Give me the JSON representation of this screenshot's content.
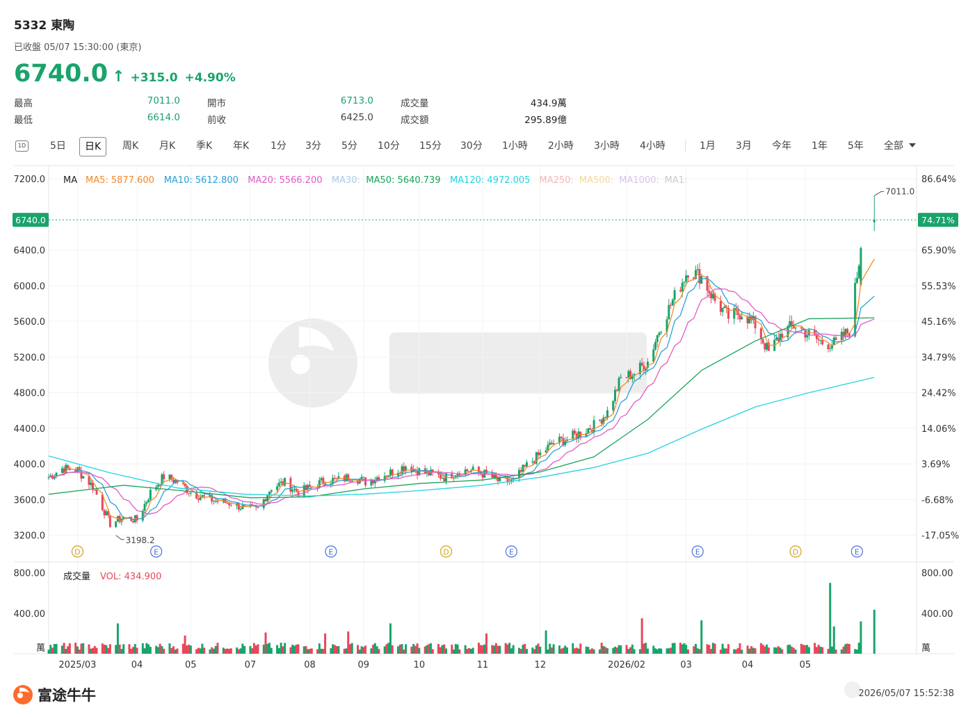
{
  "header": {
    "title": "5332  東陶",
    "status": "已收盤 05/07 15:30:00 (東京)",
    "price": "6740.0",
    "change": "+315.0",
    "change_pct": "+4.90%",
    "up_color": "#1aa36b",
    "down_color": "#e8475b"
  },
  "stats": [
    {
      "label": "最高",
      "value": "7011.0"
    },
    {
      "label": "最低",
      "value": "6614.0"
    },
    {
      "label": "開市",
      "value": "6713.0"
    },
    {
      "label": "前收",
      "value": "6425.0"
    },
    {
      "label": "成交量",
      "value": "434.9萬"
    },
    {
      "label": "成交額",
      "value": "295.89億"
    }
  ],
  "tabs": {
    "icon_label": "1D",
    "periods": [
      "5日",
      "日K",
      "周K",
      "月K",
      "季K",
      "年K",
      "1分",
      "3分",
      "5分",
      "10分",
      "15分",
      "30分",
      "1小時",
      "2小時",
      "3小時",
      "4小時"
    ],
    "ranges": [
      "1月",
      "3月",
      "今年",
      "1年",
      "5年",
      "全部"
    ],
    "active": "日K"
  },
  "legend": {
    "label": "MA",
    "items": [
      {
        "text": "MA5: 5877.600",
        "color": "#f0892b"
      },
      {
        "text": "MA10: 5612.800",
        "color": "#2a9fd8"
      },
      {
        "text": "MA20: 5566.200",
        "color": "#e05bc5"
      },
      {
        "text": "MA30:",
        "color": "#a9cbe8"
      },
      {
        "text": "MA50: 5640.739",
        "color": "#18a35c"
      },
      {
        "text": "MA120: 4972.005",
        "color": "#22d3e0"
      },
      {
        "text": "MA250:",
        "color": "#f5b7b7"
      },
      {
        "text": "MA500:",
        "color": "#f7d79a"
      },
      {
        "text": "MA1000:",
        "color": "#d4c4ef"
      },
      {
        "text": "MA1:",
        "color": "#cccccc"
      }
    ]
  },
  "volume_legend": {
    "label": "成交量",
    "value": "VOL: 434.900",
    "color": "#e8475b"
  },
  "current_price_tag": "6740.0",
  "current_pct_tag": "74.71%",
  "high_annotation": "7011.0",
  "low_annotation": "3198.2",
  "volume_unit": "萬",
  "event_markers": [
    {
      "x": "2025-03-18",
      "type": "D",
      "color": "#d4a017"
    },
    {
      "x": "2025-04-28",
      "type": "E",
      "color": "#4b6fd6"
    },
    {
      "x": "2025-07-28",
      "type": "E",
      "color": "#4b6fd6"
    },
    {
      "x": "2025-09-26",
      "type": "D",
      "color": "#d4a017"
    },
    {
      "x": "2025-10-30",
      "type": "E",
      "color": "#4b6fd6"
    },
    {
      "x": "2026-02-04",
      "type": "E",
      "color": "#4b6fd6"
    },
    {
      "x": "2026-03-27",
      "type": "D",
      "color": "#d4a017"
    },
    {
      "x": "2026-04-28",
      "type": "E",
      "color": "#4b6fd6"
    }
  ],
  "chart_data": {
    "type": "candlestick",
    "title": "",
    "x_range": [
      "2025-03-03",
      "2026-05-29"
    ],
    "ylim": [
      2900,
      7350
    ],
    "y_ticks": [
      3200,
      3600,
      4000,
      4400,
      4800,
      5200,
      5600,
      6000,
      6400,
      7200
    ],
    "y_tick_labels": [
      "3200.0",
      "3600.0",
      "4000.0",
      "4400.0",
      "4800.0",
      "5200.0",
      "5600.0",
      "6000.0",
      "6400.0",
      "7200.0"
    ],
    "pct_ticks": [
      "86.64%",
      "65.90%",
      "55.53%",
      "45.16%",
      "34.79%",
      "24.42%",
      "14.06%",
      "3.69%",
      "-6.68%",
      "-17.05%"
    ],
    "pct_tick_values": [
      7200,
      6400,
      6000,
      5600,
      5200,
      4800,
      4400,
      4000,
      3600,
      3200
    ],
    "x_tick_labels": [
      "2025/03",
      "04",
      "05",
      "07",
      "08",
      "09",
      "10",
      "11",
      "12",
      "2026/02",
      "03",
      "04",
      "05"
    ],
    "x_tick_dates": [
      "2025-03-18",
      "2025-04-18",
      "2025-05-16",
      "2025-06-16",
      "2025-07-17",
      "2025-08-14",
      "2025-09-12",
      "2025-10-15",
      "2025-11-14",
      "2025-12-29",
      "2026-01-29",
      "2026-03-02",
      "2026-04-01"
    ],
    "close_path": [
      [
        "2025-03-03",
        3850
      ],
      [
        "2025-03-10",
        3950
      ],
      [
        "2025-03-18",
        3930
      ],
      [
        "2025-03-26",
        3750
      ],
      [
        "2025-04-04",
        3330
      ],
      [
        "2025-04-11",
        3400
      ],
      [
        "2025-04-18",
        3370
      ],
      [
        "2025-04-25",
        3680
      ],
      [
        "2025-05-02",
        3860
      ],
      [
        "2025-05-09",
        3800
      ],
      [
        "2025-05-16",
        3680
      ],
      [
        "2025-05-23",
        3620
      ],
      [
        "2025-05-30",
        3580
      ],
      [
        "2025-06-06",
        3560
      ],
      [
        "2025-06-13",
        3500
      ],
      [
        "2025-06-20",
        3490
      ],
      [
        "2025-06-27",
        3740
      ],
      [
        "2025-07-04",
        3790
      ],
      [
        "2025-07-11",
        3680
      ],
      [
        "2025-07-18",
        3740
      ],
      [
        "2025-07-25",
        3820
      ],
      [
        "2025-08-01",
        3820
      ],
      [
        "2025-08-08",
        3860
      ],
      [
        "2025-08-15",
        3800
      ],
      [
        "2025-08-22",
        3860
      ],
      [
        "2025-08-29",
        3910
      ],
      [
        "2025-09-05",
        3980
      ],
      [
        "2025-09-12",
        3920
      ],
      [
        "2025-09-19",
        3880
      ],
      [
        "2025-09-26",
        3850
      ],
      [
        "2025-10-03",
        3930
      ],
      [
        "2025-10-10",
        3920
      ],
      [
        "2025-10-17",
        3880
      ],
      [
        "2025-10-24",
        3800
      ],
      [
        "2025-10-31",
        3810
      ],
      [
        "2025-11-07",
        3980
      ],
      [
        "2025-11-14",
        4110
      ],
      [
        "2025-11-21",
        4240
      ],
      [
        "2025-11-28",
        4280
      ],
      [
        "2025-12-05",
        4350
      ],
      [
        "2025-12-12",
        4430
      ],
      [
        "2025-12-19",
        4580
      ],
      [
        "2025-12-26",
        4960
      ],
      [
        "2026-01-02",
        5020
      ],
      [
        "2026-01-09",
        5150
      ],
      [
        "2026-01-16",
        5560
      ],
      [
        "2026-01-23",
        5880
      ],
      [
        "2026-01-30",
        6180
      ],
      [
        "2026-02-06",
        6100
      ],
      [
        "2026-02-13",
        5830
      ],
      [
        "2026-02-20",
        5650
      ],
      [
        "2026-02-27",
        5700
      ],
      [
        "2026-03-06",
        5560
      ],
      [
        "2026-03-13",
        5250
      ],
      [
        "2026-03-20",
        5480
      ],
      [
        "2026-03-27",
        5560
      ],
      [
        "2026-04-03",
        5450
      ],
      [
        "2026-04-10",
        5360
      ],
      [
        "2026-04-17",
        5350
      ],
      [
        "2026-04-24",
        5500
      ],
      [
        "2026-04-30",
        6425
      ],
      [
        "2026-05-07",
        6740
      ]
    ],
    "recent_candles": [
      {
        "date": "2026-04-30",
        "open": 6010,
        "high": 6440,
        "low": 5990,
        "close": 6425
      },
      {
        "date": "2026-05-07",
        "open": 6713,
        "high": 7011,
        "low": 6614,
        "close": 6740
      }
    ],
    "high": {
      "date": "2026-05-07",
      "value": 7011.0
    },
    "low": {
      "date": "2025-04-07",
      "value": 3198.2
    },
    "series": [
      {
        "name": "MA5",
        "color": "#f0892b",
        "last": 5877.6
      },
      {
        "name": "MA10",
        "color": "#2a9fd8",
        "last": 5612.8
      },
      {
        "name": "MA20",
        "color": "#e05bc5",
        "last": 5566.2
      },
      {
        "name": "MA50",
        "color": "#18a35c",
        "last": 5640.739,
        "points": [
          [
            "2025-03-03",
            3660
          ],
          [
            "2025-04-11",
            3760
          ],
          [
            "2025-05-16",
            3690
          ],
          [
            "2025-06-16",
            3620
          ],
          [
            "2025-07-17",
            3630
          ],
          [
            "2025-08-14",
            3720
          ],
          [
            "2025-09-12",
            3780
          ],
          [
            "2025-10-15",
            3820
          ],
          [
            "2025-11-14",
            3910
          ],
          [
            "2025-12-12",
            4080
          ],
          [
            "2026-01-09",
            4500
          ],
          [
            "2026-02-06",
            5050
          ],
          [
            "2026-03-06",
            5380
          ],
          [
            "2026-04-03",
            5630
          ],
          [
            "2026-05-07",
            5640
          ]
        ]
      },
      {
        "name": "MA120",
        "color": "#22d3e0",
        "last": 4972.005,
        "points": [
          [
            "2025-03-03",
            4090
          ],
          [
            "2025-04-04",
            3900
          ],
          [
            "2025-05-09",
            3730
          ],
          [
            "2025-06-13",
            3660
          ],
          [
            "2025-07-17",
            3640
          ],
          [
            "2025-08-14",
            3660
          ],
          [
            "2025-09-12",
            3700
          ],
          [
            "2025-10-15",
            3760
          ],
          [
            "2025-11-14",
            3850
          ],
          [
            "2025-12-12",
            3960
          ],
          [
            "2026-01-09",
            4120
          ],
          [
            "2026-02-06",
            4390
          ],
          [
            "2026-03-06",
            4640
          ],
          [
            "2026-04-03",
            4800
          ],
          [
            "2026-05-07",
            4972
          ]
        ]
      }
    ],
    "volume": {
      "unit": "萬",
      "y_ticks": [
        400,
        800
      ],
      "y_tick_labels": [
        "400.00",
        "800.00"
      ],
      "ylim": [
        0,
        860
      ],
      "last": 434.9,
      "spikes": [
        {
          "date": "2025-04-08",
          "value": 300
        },
        {
          "date": "2025-05-13",
          "value": 180
        },
        {
          "date": "2025-06-24",
          "value": 210
        },
        {
          "date": "2025-07-25",
          "value": 200
        },
        {
          "date": "2025-08-06",
          "value": 220
        },
        {
          "date": "2025-08-28",
          "value": 300
        },
        {
          "date": "2025-10-17",
          "value": 200
        },
        {
          "date": "2025-11-17",
          "value": 230
        },
        {
          "date": "2026-01-06",
          "value": 350
        },
        {
          "date": "2026-02-06",
          "value": 330
        },
        {
          "date": "2026-04-14",
          "value": 700
        },
        {
          "date": "2026-04-16",
          "value": 270
        },
        {
          "date": "2026-04-30",
          "value": 320
        },
        {
          "date": "2026-05-07",
          "value": 434.9
        }
      ]
    }
  },
  "footer": {
    "brand": "富途牛牛",
    "timestamp": "2026/05/07 15:52:38"
  }
}
